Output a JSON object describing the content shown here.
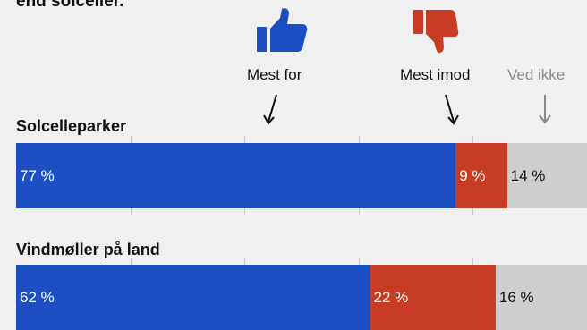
{
  "intro_text": "end solceller.",
  "legend": [
    {
      "key": "for",
      "label": "Mest for",
      "icon": "thumbs-up-icon",
      "color": "#1b4fc2"
    },
    {
      "key": "against",
      "label": "Mest imod",
      "icon": "thumbs-down-icon",
      "color": "#c83c25"
    },
    {
      "key": "unknown",
      "label": "Ved ikke",
      "icon": "arrow-down-icon",
      "color": "#cfcfcf"
    }
  ],
  "colors": {
    "label_muted": "#8a8a8a",
    "background": "#f0f0f0",
    "gridline": "#c8c8c8"
  },
  "chart_data": {
    "type": "bar",
    "stacked": true,
    "orientation": "horizontal",
    "categories": [
      "Solcelleparker",
      "Vindmøller på land"
    ],
    "series": [
      {
        "name": "Mest for",
        "values": [
          77,
          62
        ],
        "labels": [
          "77 %",
          "62 %"
        ]
      },
      {
        "name": "Mest imod",
        "values": [
          9,
          22
        ],
        "labels": [
          "9 %",
          "22 %"
        ]
      },
      {
        "name": "Ved ikke",
        "values": [
          14,
          16
        ],
        "labels": [
          "14 %",
          "16 %"
        ]
      }
    ],
    "xlim": [
      0,
      100
    ],
    "grid": true
  }
}
